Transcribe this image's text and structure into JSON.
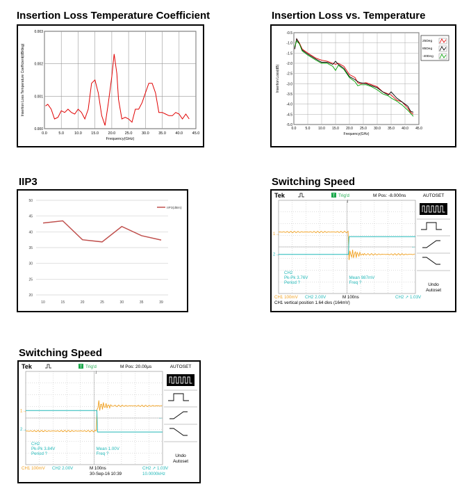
{
  "chart_data": [
    {
      "type": "line",
      "title": "Insertion Loss Temperature Coefficient",
      "xlabel": "Frequency(GHz)",
      "ylabel": "Insertion Loss Temperature Coefficient(dB/deg)",
      "xlim": [
        0,
        45
      ],
      "ylim": [
        0,
        0.003
      ],
      "x_ticks": [
        "0.0",
        "5.0",
        "10.0",
        "15.0",
        "20.0",
        "25.0",
        "30.0",
        "35.0",
        "40.0",
        "45.0"
      ],
      "y_ticks": [
        "0.000",
        "0.001",
        "0.002",
        "0.003"
      ],
      "grid": true,
      "series": [
        {
          "color": "#e00000",
          "x": [
            0.3,
            1,
            2,
            3,
            4,
            5,
            6,
            7,
            8,
            9,
            10,
            11,
            12,
            13,
            14,
            15,
            16,
            17,
            18,
            19,
            20,
            20.7,
            21.5,
            22,
            23,
            24,
            25,
            26,
            27,
            28,
            29,
            30,
            31,
            32,
            33,
            34,
            35,
            36,
            37,
            38,
            39,
            40,
            41,
            42,
            43
          ],
          "y": [
            0.0007,
            0.00075,
            0.0006,
            0.0003,
            0.00035,
            0.00055,
            0.0005,
            0.0006,
            0.0005,
            0.00045,
            0.0006,
            0.0005,
            0.0003,
            0.0006,
            0.0014,
            0.0015,
            0.0011,
            0.0004,
            0.0001,
            0.0008,
            0.0016,
            0.0023,
            0.0017,
            0.0009,
            0.0003,
            0.00035,
            0.0003,
            0.0002,
            0.0006,
            0.0006,
            0.0008,
            0.0011,
            0.0014,
            0.0014,
            0.0011,
            0.0005,
            0.0005,
            0.00045,
            0.0004,
            0.0004,
            0.0005,
            0.00045,
            0.0003,
            0.00045,
            0.0003
          ]
        }
      ]
    },
    {
      "type": "line",
      "title": "Insertion Loss vs. Temperature",
      "xlabel": "Frequency(GHz)",
      "ylabel": "Insertion Loss(dB)",
      "xlim": [
        0,
        45
      ],
      "ylim": [
        -5.0,
        -0.5
      ],
      "x_ticks": [
        "0.0",
        "5.0",
        "10.0",
        "15.0",
        "20.0",
        "25.0",
        "30.0",
        "35.0",
        "40.0",
        "45.0"
      ],
      "y_ticks": [
        "-0.5",
        "-1.0",
        "-1.5",
        "-2.0",
        "-2.5",
        "-3.0",
        "-3.5",
        "-4.0",
        "-4.5",
        "-5.0"
      ],
      "grid": true,
      "legend_position": "top-right",
      "series": [
        {
          "name": "25Deg",
          "color": "#e00000",
          "x": [
            0.3,
            1,
            2,
            3,
            5,
            8,
            10,
            12,
            14,
            15,
            16,
            18,
            20,
            22,
            23,
            24,
            26,
            28,
            30,
            32,
            34,
            35,
            37,
            39,
            41,
            42,
            43
          ],
          "y": [
            -1.3,
            -0.8,
            -1.0,
            -1.3,
            -1.5,
            -1.75,
            -1.85,
            -1.9,
            -2.0,
            -2.05,
            -2.0,
            -2.15,
            -2.55,
            -2.7,
            -2.95,
            -3.0,
            -2.95,
            -3.05,
            -3.15,
            -3.4,
            -3.5,
            -3.55,
            -3.8,
            -3.9,
            -4.2,
            -4.4,
            -4.5
          ]
        },
        {
          "name": "85Deg",
          "color": "#000000",
          "x": [
            0.3,
            1,
            2,
            3,
            5,
            8,
            10,
            12,
            14,
            15,
            16,
            18,
            20,
            22,
            23,
            24,
            26,
            28,
            30,
            32,
            34,
            35,
            37,
            39,
            41,
            42,
            43
          ],
          "y": [
            -1.3,
            -0.8,
            -1.05,
            -1.35,
            -1.55,
            -1.8,
            -1.95,
            -1.95,
            -2.05,
            -1.9,
            -2.05,
            -2.25,
            -2.65,
            -2.8,
            -2.9,
            -2.95,
            -3.0,
            -3.1,
            -3.2,
            -3.4,
            -3.55,
            -3.4,
            -3.7,
            -3.9,
            -4.1,
            -4.35,
            -4.4
          ]
        },
        {
          "name": "-40Deg",
          "color": "#00a000",
          "x": [
            0.3,
            1,
            2,
            3,
            5,
            8,
            10,
            12,
            14,
            15,
            16,
            18,
            20,
            22,
            23,
            24,
            26,
            28,
            30,
            32,
            34,
            35,
            37,
            39,
            41,
            42,
            43
          ],
          "y": [
            -1.2,
            -0.9,
            -1.05,
            -1.4,
            -1.6,
            -1.85,
            -2.0,
            -2.0,
            -2.15,
            -2.35,
            -2.1,
            -2.3,
            -2.7,
            -2.9,
            -3.1,
            -3.05,
            -3.05,
            -3.15,
            -3.3,
            -3.5,
            -3.6,
            -3.7,
            -3.85,
            -4.05,
            -4.3,
            -4.45,
            -4.6
          ]
        }
      ]
    },
    {
      "type": "line",
      "title": "IIP3",
      "x": [
        10,
        15,
        20,
        25,
        30,
        35,
        39
      ],
      "x_ticks": [
        "10",
        "15",
        "20",
        "25",
        "30",
        "35",
        "39"
      ],
      "y_ticks": [
        "50",
        "45",
        "40",
        "35",
        "30",
        "25",
        "20"
      ],
      "ylim": [
        20,
        50
      ],
      "grid": true,
      "legend_position": "top-right",
      "series": [
        {
          "name": "IIP3(dBm)",
          "color": "#c0504d",
          "values": [
            42.8,
            43.5,
            37.5,
            36.8,
            41.7,
            38.8,
            37.4
          ]
        }
      ]
    }
  ],
  "scope1": {
    "title": "Switching Speed",
    "brand": "Tek",
    "trig": "Trig'd",
    "mpos": "M Pos: -8.000ns",
    "autoset": "AUTOSET",
    "ch1_marker": "1→",
    "ch2_marker": "2→",
    "meas_ch": "CH2",
    "meas_pkpk": "Pk-Pk 3.76V",
    "meas_period": "Period  ?",
    "meas_mean": "Mean 987mV",
    "meas_freq": "Freq  ?",
    "undo": "Undo",
    "undo2": "Autoset",
    "bot_ch1": "CH1  100mV",
    "bot_ch2": "CH2  2.00V",
    "bot_m": "M 100ns",
    "bot_trig": "CH2 ↗ 1.03V",
    "bot_status": "CH1 vertical position 1.64 divs (164mV)"
  },
  "scope2": {
    "title": "Switching Speed",
    "brand": "Tek",
    "trig": "Trig'd",
    "mpos": "M Pos: 20.00µs",
    "autoset": "AUTOSET",
    "ch1_marker": "1→",
    "ch2_marker": "2→",
    "meas_ch": "CH2",
    "meas_pkpk": "Pk-Pk 3.84V",
    "meas_period": "Period  ?",
    "meas_mean": "Mean 1.00V",
    "meas_freq": "Freq  ?",
    "undo": "Undo",
    "undo2": "Autoset",
    "bot_ch1": "CH1  100mV",
    "bot_ch2": "CH2  2.00V",
    "bot_m": "M 100ns",
    "bot_date": "30-Sep-16 10:39",
    "bot_trig": "CH2 ↗ 1.03V",
    "bot_freq": "10.0000kHz"
  },
  "colors": {
    "ch1": "#f0a020",
    "ch2": "#20b8b8",
    "trig": "#1aa84a",
    "meas": "#20b8b8"
  }
}
